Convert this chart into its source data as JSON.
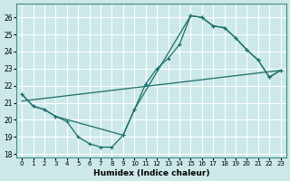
{
  "xlabel": "Humidex (Indice chaleur)",
  "bg_color": "#cce8e8",
  "grid_color": "#ffffff",
  "line_color": "#1a6e6a",
  "xlim": [
    -0.5,
    23.5
  ],
  "ylim": [
    17.8,
    26.8
  ],
  "xticks": [
    0,
    1,
    2,
    3,
    4,
    5,
    6,
    7,
    8,
    9,
    10,
    11,
    12,
    13,
    14,
    15,
    16,
    17,
    18,
    19,
    20,
    21,
    22,
    23
  ],
  "yticks": [
    18,
    19,
    20,
    21,
    22,
    23,
    24,
    25,
    26
  ],
  "line1_x": [
    0,
    1,
    2,
    3,
    4,
    5,
    6,
    7,
    8,
    9,
    10,
    11,
    12,
    13,
    14,
    15,
    16,
    17,
    18,
    19,
    20,
    21,
    22,
    23
  ],
  "line1_y": [
    21.5,
    20.8,
    20.6,
    20.2,
    19.9,
    19.0,
    18.6,
    18.4,
    18.4,
    19.1,
    20.6,
    22.1,
    23.0,
    23.6,
    24.4,
    26.1,
    26.0,
    25.5,
    25.4,
    24.8,
    24.1,
    23.5,
    22.5,
    22.9
  ],
  "line2_x": [
    0,
    23
  ],
  "line2_y": [
    21.1,
    22.9
  ],
  "line3_x": [
    0,
    1,
    2,
    3,
    9,
    10,
    15,
    16,
    17,
    18,
    19,
    20,
    21,
    22,
    23
  ],
  "line3_y": [
    21.5,
    20.8,
    20.6,
    20.2,
    19.1,
    20.6,
    26.1,
    26.0,
    25.5,
    25.4,
    24.8,
    24.1,
    23.5,
    22.5,
    22.9
  ]
}
